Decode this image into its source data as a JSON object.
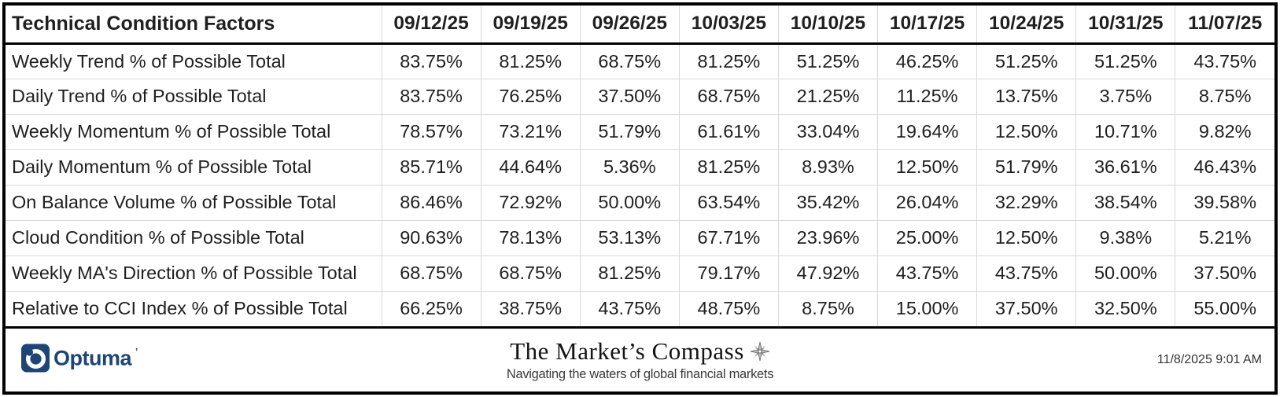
{
  "chart_data": {
    "type": "table",
    "title": "Technical Condition Factors",
    "columns": [
      "09/12/25",
      "09/19/25",
      "09/26/25",
      "10/03/25",
      "10/10/25",
      "10/17/25",
      "10/24/25",
      "10/31/25",
      "11/07/25"
    ],
    "rows": [
      {
        "label": "Weekly Trend % of Possible Total",
        "values": [
          "83.75%",
          "81.25%",
          "68.75%",
          "81.25%",
          "51.25%",
          "46.25%",
          "51.25%",
          "51.25%",
          "43.75%"
        ]
      },
      {
        "label": "Daily Trend % of Possible Total",
        "values": [
          "83.75%",
          "76.25%",
          "37.50%",
          "68.75%",
          "21.25%",
          "11.25%",
          "13.75%",
          "3.75%",
          "8.75%"
        ]
      },
      {
        "label": "Weekly Momentum % of Possible Total",
        "values": [
          "78.57%",
          "73.21%",
          "51.79%",
          "61.61%",
          "33.04%",
          "19.64%",
          "12.50%",
          "10.71%",
          "9.82%"
        ]
      },
      {
        "label": "Daily Momentum % of Possible Total",
        "values": [
          "85.71%",
          "44.64%",
          "5.36%",
          "81.25%",
          "8.93%",
          "12.50%",
          "51.79%",
          "36.61%",
          "46.43%"
        ]
      },
      {
        "label": "On Balance Volume % of Possible Total",
        "values": [
          "86.46%",
          "72.92%",
          "50.00%",
          "63.54%",
          "35.42%",
          "26.04%",
          "32.29%",
          "38.54%",
          "39.58%"
        ]
      },
      {
        "label": "Cloud Condition % of Possible Total",
        "values": [
          "90.63%",
          "78.13%",
          "53.13%",
          "67.71%",
          "23.96%",
          "25.00%",
          "12.50%",
          "9.38%",
          "5.21%"
        ]
      },
      {
        "label": "Weekly MA's Direction % of Possible Total",
        "values": [
          "68.75%",
          "68.75%",
          "81.25%",
          "79.17%",
          "47.92%",
          "43.75%",
          "43.75%",
          "50.00%",
          "37.50%"
        ]
      },
      {
        "label": "Relative to CCI Index % of Possible Total",
        "values": [
          "66.25%",
          "38.75%",
          "43.75%",
          "48.75%",
          "8.75%",
          "15.00%",
          "37.50%",
          "32.50%",
          "55.00%"
        ]
      }
    ],
    "layout": {
      "grid": "light-gray inner gridlines, heavy black outer border and header rule",
      "legend": "none"
    }
  },
  "footer": {
    "brand": "Optuma",
    "title": "The Market’s Compass",
    "tagline": "Navigating the waters of global financial markets",
    "timestamp": "11/8/2025 9:01 AM"
  },
  "icons": {
    "optuma_logo": "optuma-swirl-mark",
    "compass": "compass-rose"
  },
  "colors": {
    "text": "#1f1f1f",
    "grid": "#d9d9d9",
    "border": "#000000",
    "brand_navy": "#1e4574",
    "compass_gray": "#8c8c8c",
    "tagline_gray": "#3a3a3a"
  }
}
